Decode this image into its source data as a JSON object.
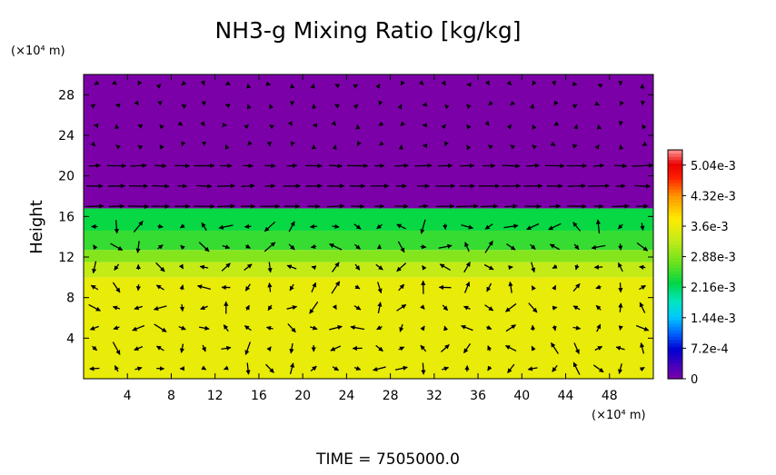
{
  "chart_data": {
    "type": "heatmap",
    "title": "NH3-g Mixing Ratio [kg/kg]",
    "ylabel": "Height",
    "x_unit": "(×10⁴ m)",
    "y_unit": "(×10⁴ m)",
    "footer": "TIME  =  7505000.0",
    "xlim": [
      0,
      52
    ],
    "ylim": [
      0,
      30
    ],
    "x_ticks": [
      4,
      8,
      12,
      16,
      20,
      24,
      28,
      32,
      36,
      40,
      44,
      48
    ],
    "y_ticks": [
      4,
      8,
      12,
      16,
      20,
      24,
      28
    ],
    "colorbar": {
      "min": 0,
      "max": 0.0054,
      "tick_values": [
        0,
        0.00072,
        0.00144,
        0.00216,
        0.00288,
        0.0036,
        0.00432,
        0.00504
      ],
      "tick_labels": [
        "0",
        "7.2e-4",
        "1.44e-3",
        "2.16e-3",
        "2.88e-3",
        "3.6e-3",
        "4.32e-3",
        "5.04e-3"
      ]
    },
    "field_layers": [
      {
        "y_from": 0,
        "y_to": 10,
        "value": 0.0036
      },
      {
        "y_from": 10,
        "y_to": 11.5,
        "value": 0.0033
      },
      {
        "y_from": 11.5,
        "y_to": 12.7,
        "value": 0.0029
      },
      {
        "y_from": 12.7,
        "y_to": 14.6,
        "value": 0.0025
      },
      {
        "y_from": 14.6,
        "y_to": 16.8,
        "value": 0.0023
      },
      {
        "y_from": 16.8,
        "y_to": 30,
        "value": 0.0
      }
    ],
    "vector_field": {
      "description": "wind vectors overlaid on field",
      "dx": 2,
      "dy": 2
    }
  },
  "colors": {
    "background": "#ffffff",
    "upper_region": "#7b00a8",
    "lower_region": "#cdee1a"
  }
}
